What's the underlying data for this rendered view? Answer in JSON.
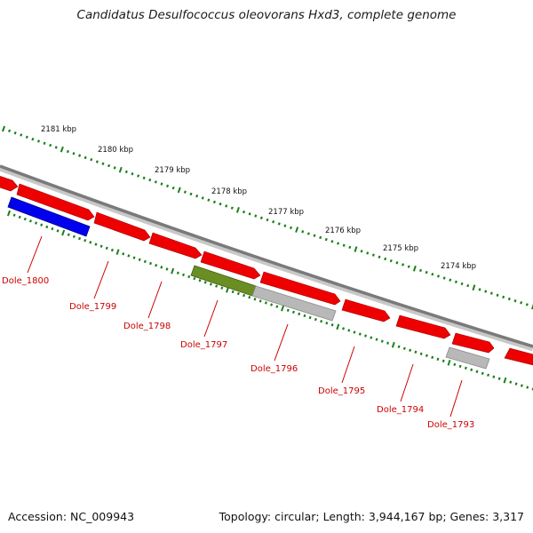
{
  "header": {
    "title": "Candidatus Desulfococcus oleovorans Hxd3, complete genome"
  },
  "footer": {
    "accession": "Accession: NC_009943",
    "summary": "Topology: circular; Length: 3,944,167 bp; Genes: 3,317"
  },
  "colors": {
    "backbone": "#7a7a7a",
    "tick": "#1a7f1a",
    "gene_default": "#ee0000",
    "gene_blue": "#0000ee",
    "gene_olive": "#6b8e23",
    "gene_gray": "#b8b8b8",
    "label": "#cc0000"
  },
  "scale_labels": [
    "2181 kbp",
    "2180 kbp",
    "2179 kbp",
    "2178 kbp",
    "2177 kbp",
    "2176 kbp",
    "2175 kbp",
    "2174 kbp"
  ],
  "genes": [
    {
      "label": "Dole_1800",
      "color": "blue"
    },
    {
      "label": "Dole_1799",
      "color": "red"
    },
    {
      "label": "Dole_1798",
      "color": "red"
    },
    {
      "label": "Dole_1797",
      "color": "olive"
    },
    {
      "label": "Dole_1796",
      "color": "gray"
    },
    {
      "label": "Dole_1795",
      "color": "red"
    },
    {
      "label": "Dole_1794",
      "color": "red"
    },
    {
      "label": "Dole_1793",
      "color": "gray"
    }
  ]
}
